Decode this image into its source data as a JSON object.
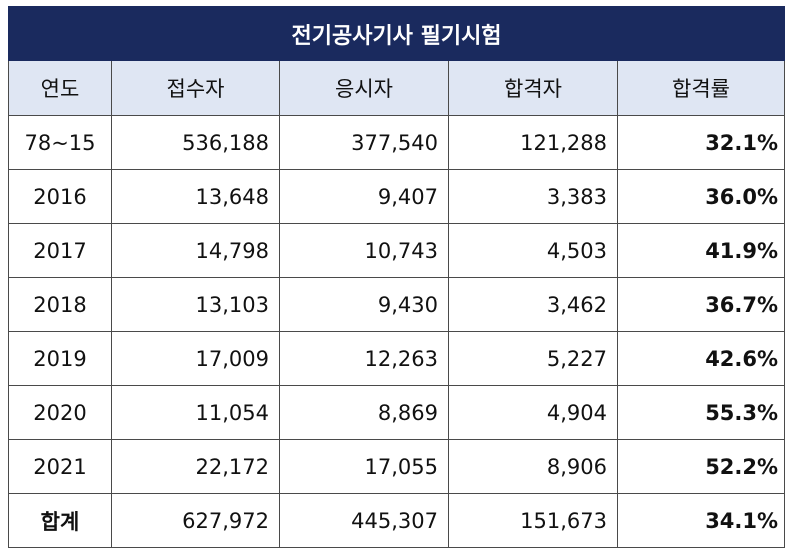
{
  "title": "전기공사기사 필기시험",
  "headers": [
    "연도",
    "접수자",
    "응시자",
    "합격자",
    "합격률"
  ],
  "rows": [
    {
      "year": "78~15",
      "applied": "536,188",
      "took": "377,540",
      "passed": "121,288",
      "rate": "32.1%"
    },
    {
      "year": "2016",
      "applied": "13,648",
      "took": "9,407",
      "passed": "3,383",
      "rate": "36.0%"
    },
    {
      "year": "2017",
      "applied": "14,798",
      "took": "10,743",
      "passed": "4,503",
      "rate": "41.9%"
    },
    {
      "year": "2018",
      "applied": "13,103",
      "took": "9,430",
      "passed": "3,462",
      "rate": "36.7%"
    },
    {
      "year": "2019",
      "applied": "17,009",
      "took": "12,263",
      "passed": "5,227",
      "rate": "42.6%"
    },
    {
      "year": "2020",
      "applied": "11,054",
      "took": "8,869",
      "passed": "4,904",
      "rate": "55.3%"
    },
    {
      "year": "2021",
      "applied": "22,172",
      "took": "17,055",
      "passed": "8,906",
      "rate": "52.2%"
    },
    {
      "year": "합계",
      "applied": "627,972",
      "took": "445,307",
      "passed": "151,673",
      "rate": "34.1%"
    }
  ],
  "colors": {
    "title_bg": "#1a2a5e",
    "header_bg": "#dfe6f3"
  }
}
